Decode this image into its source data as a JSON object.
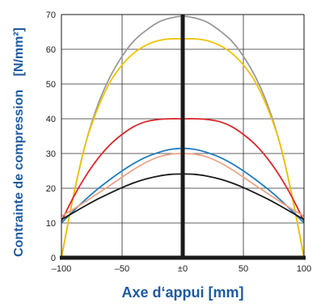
{
  "chart_data": {
    "type": "line",
    "title": "",
    "xlabel": "Axe d‘appui [mm]",
    "ylabel": "Contrainte de compression",
    "ylabel_unit": "[N/mm²]",
    "xlim": [
      -100,
      100
    ],
    "ylim": [
      0,
      70
    ],
    "x_ticks": [
      -100,
      -50,
      0,
      50,
      100
    ],
    "x_tick_labels": [
      "–100",
      "–50",
      "±0",
      "50",
      "100"
    ],
    "y_ticks": [
      0,
      10,
      20,
      30,
      40,
      50,
      60,
      70
    ],
    "y_tick_labels": [
      "0",
      "10",
      "20",
      "30",
      "40",
      "50",
      "60",
      "70"
    ],
    "grid": true,
    "legend": "none",
    "axis_color": "#1a1a1a",
    "title_color": "#1f5a9e",
    "series": [
      {
        "color": "#999999",
        "x": [
          -100,
          -90,
          -80,
          -70,
          -60,
          -50,
          -40,
          -30,
          -20,
          -10,
          0,
          10,
          20,
          30,
          40,
          50,
          60,
          70,
          80,
          90,
          100
        ],
        "y": [
          0,
          18,
          33,
          44,
          52,
          58,
          62.5,
          65.5,
          67.8,
          69,
          69.5,
          69,
          67.8,
          65.5,
          62.5,
          58,
          52,
          44,
          33,
          18,
          0
        ]
      },
      {
        "color": "#f2c200",
        "x": [
          -100,
          -90,
          -80,
          -70,
          -60,
          -50,
          -40,
          -30,
          -20,
          -10,
          0,
          10,
          20,
          30,
          40,
          50,
          60,
          70,
          80,
          90,
          100
        ],
        "y": [
          0,
          18,
          33,
          43,
          50.5,
          55.5,
          59,
          61.2,
          62.5,
          63,
          63,
          63,
          62.5,
          61.2,
          59,
          55.5,
          50.5,
          43,
          33,
          18,
          0
        ]
      },
      {
        "color": "#d9262b",
        "x": [
          -100,
          -90,
          -80,
          -70,
          -60,
          -50,
          -40,
          -30,
          -20,
          -10,
          0,
          10,
          20,
          30,
          40,
          50,
          60,
          70,
          80,
          90,
          100
        ],
        "y": [
          10.5,
          17.5,
          23.5,
          28.5,
          32.5,
          35.5,
          37.8,
          39.2,
          39.8,
          40,
          40,
          40,
          39.8,
          39.2,
          37.8,
          35.5,
          32.5,
          28.5,
          23.5,
          17.5,
          10.5
        ]
      },
      {
        "color": "#1f7cc0",
        "x": [
          -100,
          -90,
          -80,
          -70,
          -60,
          -50,
          -40,
          -30,
          -20,
          -10,
          0,
          10,
          20,
          30,
          40,
          50,
          60,
          70,
          80,
          90,
          100
        ],
        "y": [
          10,
          13.5,
          16.8,
          19.8,
          22.5,
          25,
          27.2,
          29,
          30.3,
          31.2,
          31.5,
          31.2,
          30.3,
          29,
          27.2,
          25,
          22.5,
          19.8,
          16.8,
          13.5,
          10
        ]
      },
      {
        "color": "#eea285",
        "x": [
          -100,
          -90,
          -80,
          -70,
          -60,
          -50,
          -40,
          -30,
          -20,
          -10,
          0,
          10,
          20,
          30,
          40,
          50,
          60,
          70,
          80,
          90,
          100
        ],
        "y": [
          12,
          14,
          16.2,
          18.5,
          20.8,
          23.2,
          25.5,
          27.5,
          29,
          29.8,
          30,
          29.8,
          29,
          27.5,
          25.5,
          23.2,
          20.8,
          18.5,
          16.2,
          14,
          12
        ]
      },
      {
        "color": "#1a1a1a",
        "x": [
          -100,
          -90,
          -80,
          -70,
          -60,
          -50,
          -40,
          -30,
          -20,
          -10,
          0,
          10,
          20,
          30,
          40,
          50,
          60,
          70,
          80,
          90,
          100
        ],
        "y": [
          11,
          13,
          15,
          16.9,
          18.6,
          20.2,
          21.6,
          22.7,
          23.5,
          24,
          24.1,
          24,
          23.5,
          22.7,
          21.6,
          20.2,
          18.6,
          16.9,
          15,
          13,
          11
        ]
      }
    ]
  }
}
